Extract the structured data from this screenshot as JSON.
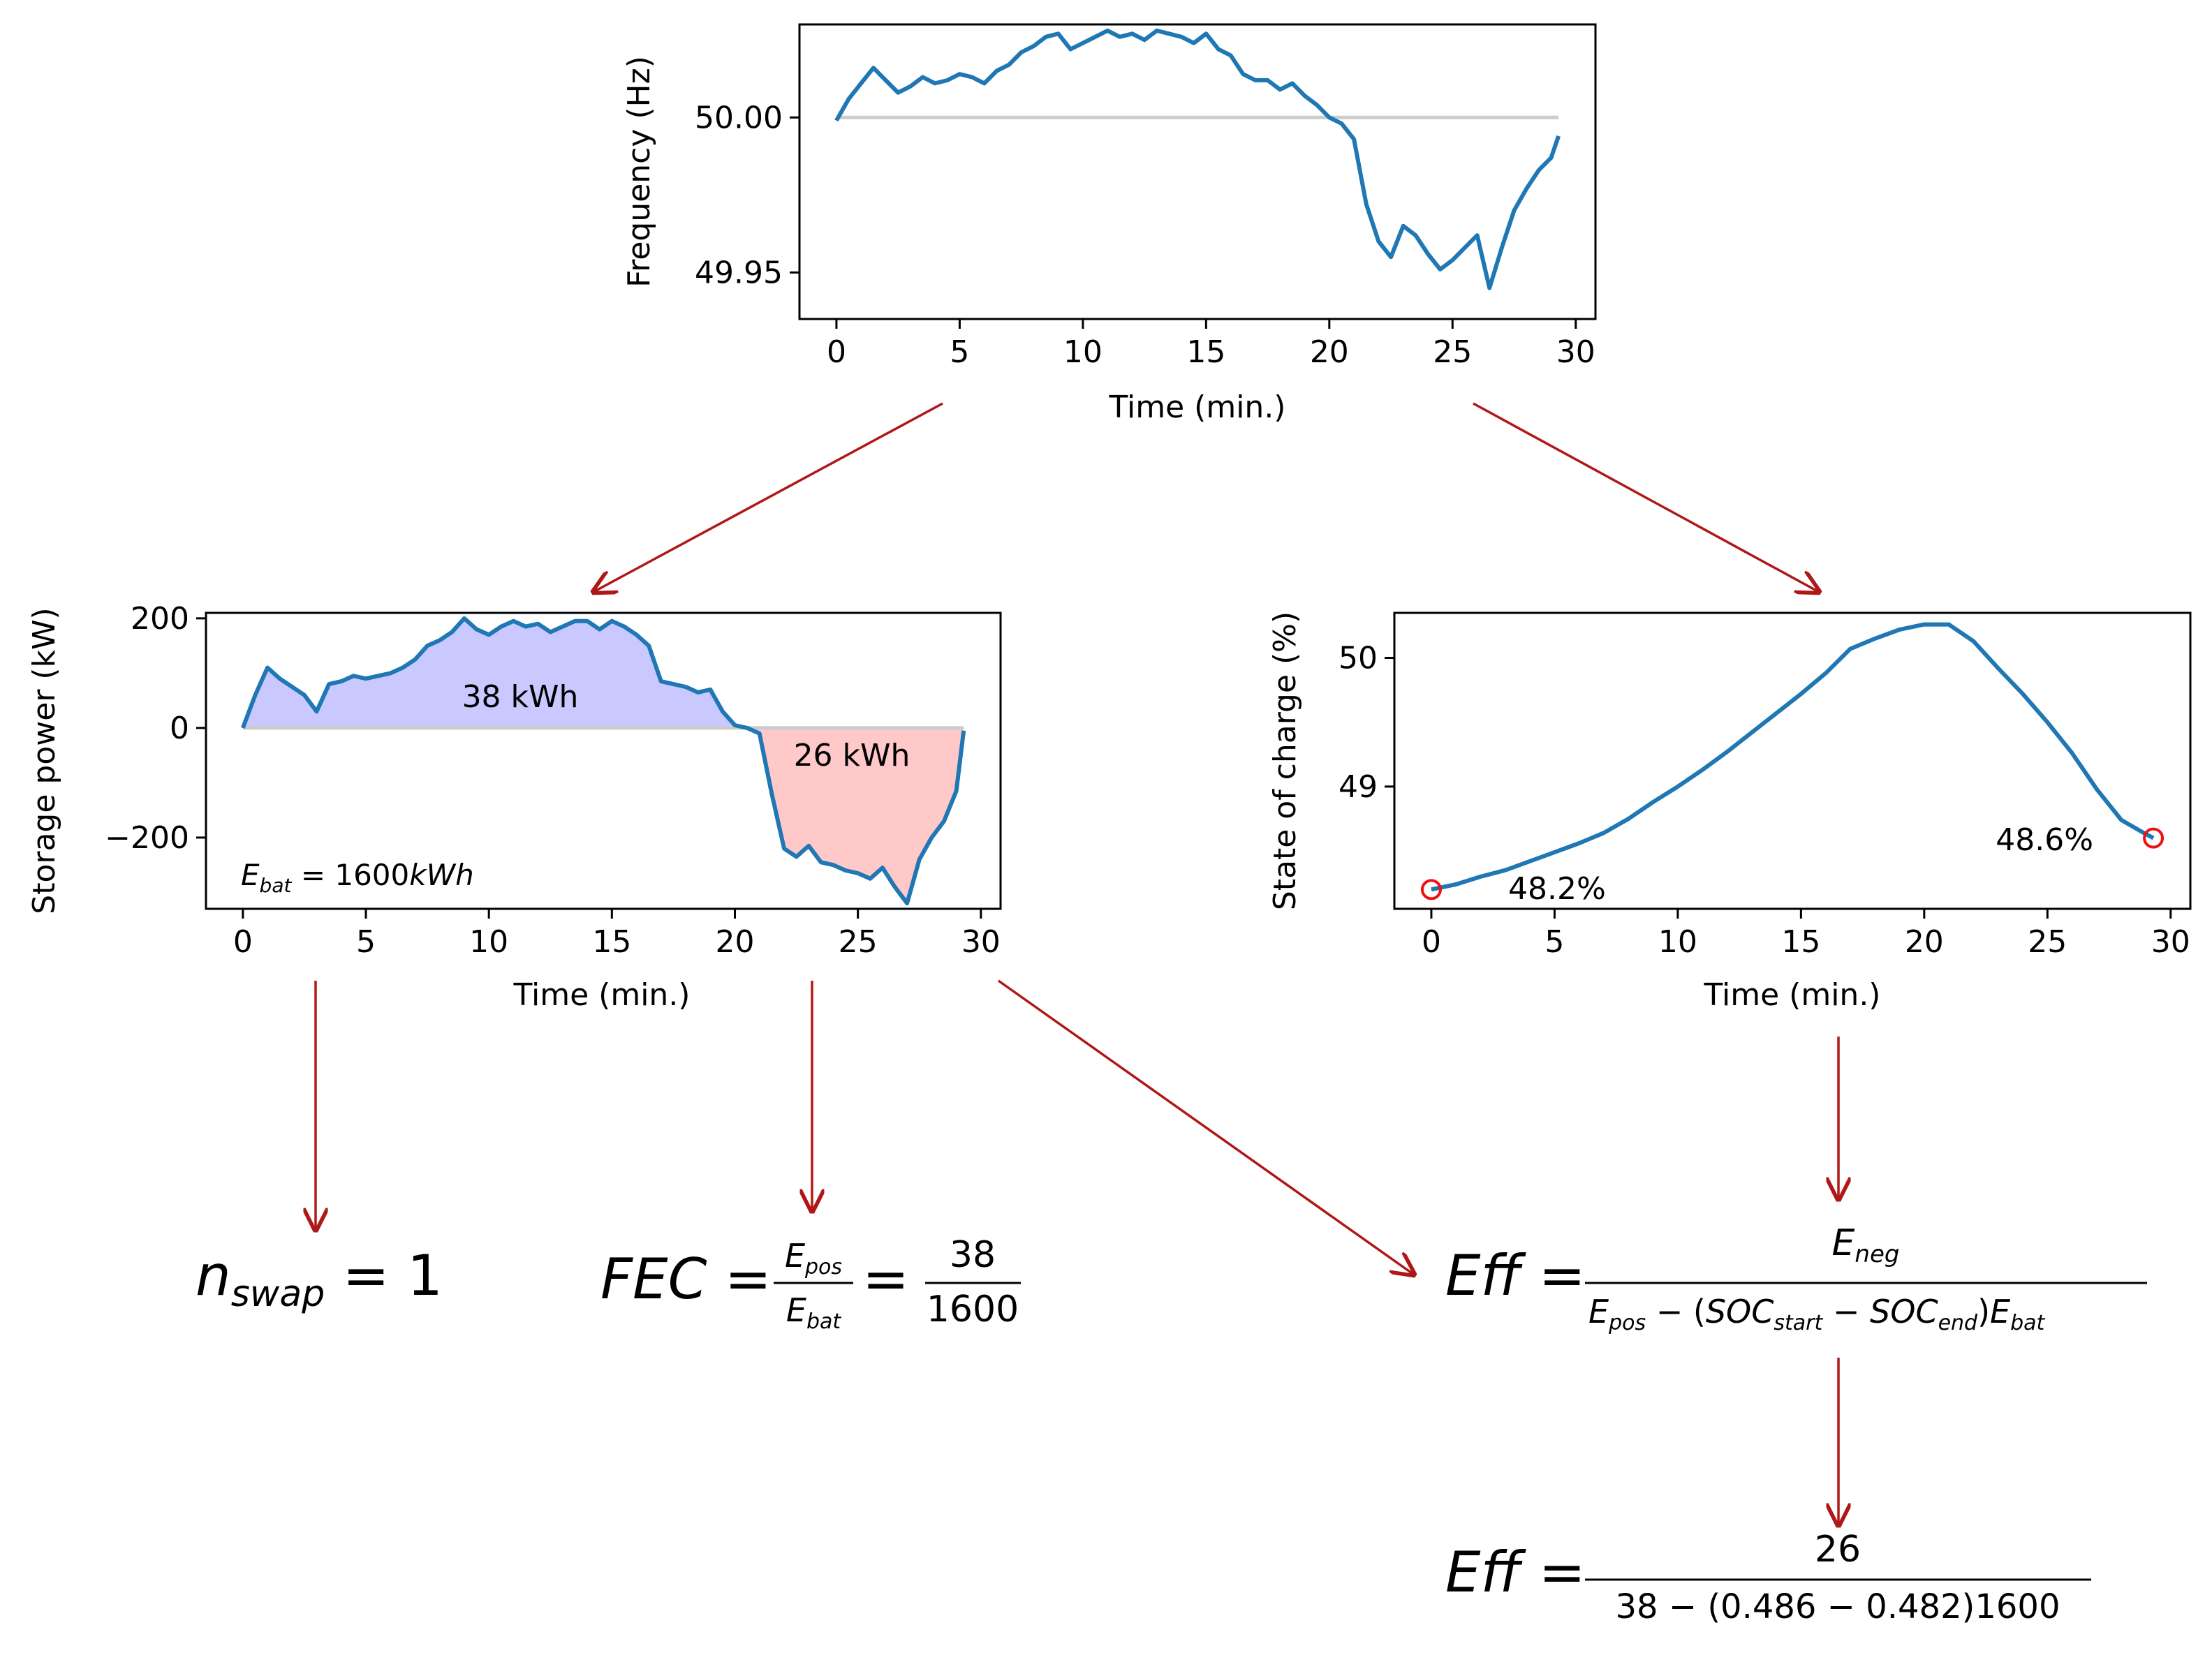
{
  "charts": {
    "frequency": {
      "ylabel": "Frequency (Hz)",
      "xlabel": "Time (min.)",
      "xticks": [
        "0",
        "5",
        "10",
        "15",
        "20",
        "25",
        "30"
      ],
      "yticks": [
        "50.00",
        "49.95"
      ]
    },
    "power": {
      "ylabel": "Storage power (kW)",
      "xlabel": "Time (min.)",
      "xticks": [
        "0",
        "5",
        "10",
        "15",
        "20",
        "25",
        "30"
      ],
      "yticks": [
        "200",
        "0",
        "−200"
      ],
      "pos_label": "38 kWh",
      "neg_label": "26 kWh",
      "ebat_value": " = 1600",
      "ebat_unit": "kWh"
    },
    "soc": {
      "ylabel": "State of charge (%)",
      "xlabel": "Time (min.)",
      "xticks": [
        "0",
        "5",
        "10",
        "15",
        "20",
        "25",
        "30"
      ],
      "yticks": [
        "50",
        "49"
      ],
      "start_label": "48.2%",
      "end_label": "48.6%"
    }
  },
  "formulas": {
    "nswap_value": " = 1",
    "fec_num": "38",
    "fec_den": "1600",
    "eff_den_tail": ")",
    "eff2_num": "26",
    "eff2_den": "38 − (0.486 − 0.482)1600"
  },
  "chart_data": [
    {
      "type": "line",
      "xlabel": "Time (min.)",
      "ylabel": "Frequency (Hz)",
      "xlim": [
        -1.5,
        30.8
      ],
      "ylim": [
        49.935,
        50.03
      ],
      "reference_line": 50.0,
      "series": [
        {
          "x": [
            0,
            0.5,
            1,
            1.5,
            2,
            2.5,
            3,
            3.5,
            4,
            4.5,
            5,
            5.5,
            6,
            6.5,
            7,
            7.5,
            8,
            8.5,
            9,
            9.5,
            10,
            10.5,
            11,
            11.5,
            12,
            12.5,
            13,
            13.5,
            14,
            14.5,
            15,
            15.5,
            16,
            16.5,
            17,
            17.5,
            18,
            18.5,
            19,
            19.5,
            20,
            20.5,
            21,
            21.5,
            22,
            22.5,
            23,
            23.5,
            24,
            24.5,
            25,
            25.5,
            26,
            26.5,
            27,
            27.5,
            28,
            28.5,
            29,
            29.3
          ],
          "y": [
            49.999,
            50.006,
            50.011,
            50.016,
            50.012,
            50.008,
            50.01,
            50.013,
            50.011,
            50.012,
            50.014,
            50.013,
            50.011,
            50.015,
            50.017,
            50.021,
            50.023,
            50.026,
            50.027,
            50.022,
            50.024,
            50.026,
            50.028,
            50.026,
            50.027,
            50.025,
            50.028,
            50.027,
            50.026,
            50.024,
            50.027,
            50.022,
            50.02,
            50.014,
            50.012,
            50.012,
            50.009,
            50.011,
            50.007,
            50.004,
            50.0,
            49.998,
            49.993,
            49.972,
            49.96,
            49.955,
            49.965,
            49.962,
            49.956,
            49.951,
            49.954,
            49.958,
            49.962,
            49.945,
            49.958,
            49.97,
            49.977,
            49.983,
            49.987,
            49.994
          ]
        }
      ]
    },
    {
      "type": "area",
      "xlabel": "Time (min.)",
      "ylabel": "Storage power (kW)",
      "xlim": [
        -1.5,
        30.8
      ],
      "ylim": [
        -330,
        210
      ],
      "annotations": [
        "38 kWh",
        "26 kWh",
        "E_bat = 1600kWh"
      ],
      "series": [
        {
          "x": [
            0,
            0.5,
            1,
            1.5,
            2,
            2.5,
            3,
            3.5,
            4,
            4.5,
            5,
            5.5,
            6,
            6.5,
            7,
            7.5,
            8,
            8.5,
            9,
            9.5,
            10,
            10.5,
            11,
            11.5,
            12,
            12.5,
            13,
            13.5,
            14,
            14.5,
            15,
            15.5,
            16,
            16.5,
            17,
            17.5,
            18,
            18.5,
            19,
            19.5,
            20,
            20.5,
            21,
            21.5,
            22,
            22.5,
            23,
            23.5,
            24,
            24.5,
            25,
            25.5,
            26,
            26.5,
            27,
            27.5,
            28,
            28.5,
            29,
            29.3
          ],
          "y": [
            0,
            60,
            110,
            90,
            75,
            60,
            30,
            80,
            85,
            95,
            90,
            95,
            100,
            110,
            125,
            150,
            160,
            175,
            200,
            180,
            170,
            185,
            195,
            185,
            190,
            175,
            185,
            195,
            195,
            180,
            195,
            185,
            170,
            150,
            85,
            80,
            75,
            65,
            70,
            30,
            5,
            0,
            -10,
            -120,
            -220,
            -235,
            -215,
            -245,
            -250,
            -260,
            -265,
            -275,
            -255,
            -290,
            -320,
            -240,
            -200,
            -170,
            -115,
            -5
          ]
        }
      ]
    },
    {
      "type": "line",
      "xlabel": "Time (min.)",
      "ylabel": "State of charge (%)",
      "xlim": [
        -1.5,
        30.8
      ],
      "ylim": [
        48.05,
        50.35
      ],
      "markers": [
        {
          "x": 0,
          "y": 48.2,
          "label": "48.2%"
        },
        {
          "x": 29.3,
          "y": 48.6,
          "label": "48.6%"
        }
      ],
      "series": [
        {
          "x": [
            0,
            1,
            2,
            3,
            4,
            5,
            6,
            7,
            8,
            9,
            10,
            11,
            12,
            13,
            14,
            15,
            16,
            17,
            18,
            19,
            20,
            21,
            22,
            23,
            24,
            25,
            26,
            27,
            28,
            29,
            29.3
          ],
          "y": [
            48.2,
            48.24,
            48.3,
            48.35,
            48.42,
            48.49,
            48.56,
            48.64,
            48.75,
            48.88,
            49.0,
            49.13,
            49.27,
            49.42,
            49.57,
            49.72,
            49.88,
            50.07,
            50.15,
            50.22,
            50.26,
            50.26,
            50.13,
            49.92,
            49.72,
            49.5,
            49.26,
            48.98,
            48.74,
            48.63,
            48.6
          ]
        }
      ]
    }
  ]
}
